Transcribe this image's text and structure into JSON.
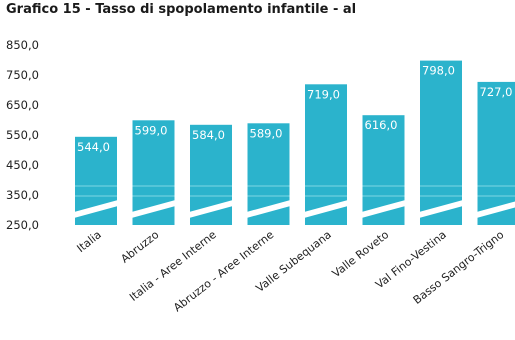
{
  "chart_data": {
    "type": "bar",
    "title": "Grafico 15 - Tasso di spopolamento infantile - al",
    "categories": [
      "Italia",
      "Abruzzo",
      "Italia - Aree Interne",
      "Abruzzo - Aree Interne",
      "Valle Subequana",
      "Valle Roveto",
      "Val Fino-Vestina",
      "Basso Sangro-Trigno"
    ],
    "values": [
      544.0,
      599.0,
      584.0,
      589.0,
      719.0,
      616.0,
      798.0,
      727.0
    ],
    "data_labels": [
      "544,0",
      "599,0",
      "584,0",
      "589,0",
      "719,0",
      "616,0",
      "798,0",
      "727,0"
    ],
    "yticks": [
      "850,0",
      "750,0",
      "650,0",
      "550,0",
      "450,0",
      "350,0",
      "250,0"
    ],
    "ylim": [
      250,
      850
    ],
    "axis_break": true,
    "grid": false,
    "bar_color": "#2bb3cc"
  }
}
